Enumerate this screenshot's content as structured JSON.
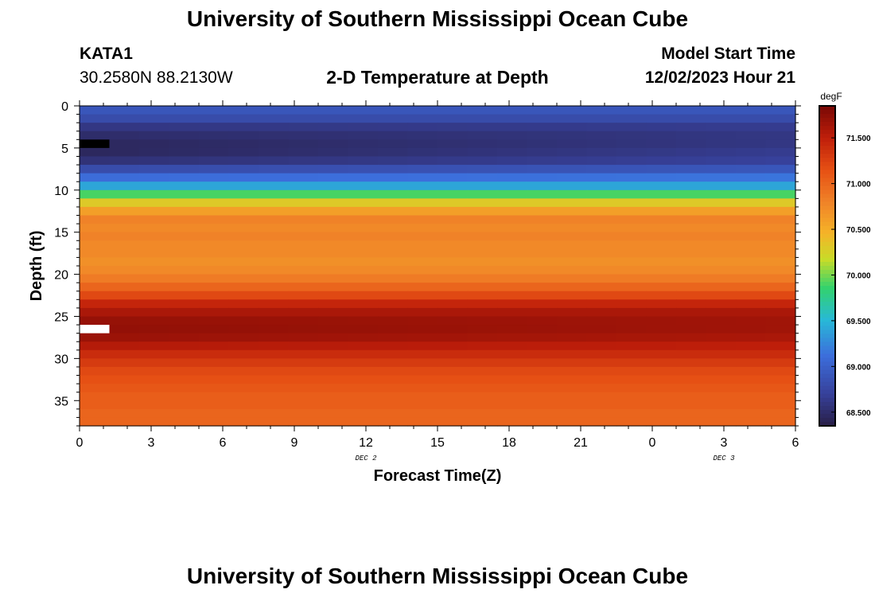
{
  "page_title": "University of Southern Mississippi Ocean Cube",
  "station_id": "KATA1",
  "station_coords": "30.2580N  88.2130W",
  "plot_title": "2-D Temperature at Depth",
  "model_start_label": "Model Start Time",
  "model_start_value": "12/02/2023 Hour 21",
  "footer_title": "University of Southern Mississippi Ocean Cube",
  "chart_data": {
    "type": "heatmap",
    "title": "2-D Temperature at Depth",
    "xlabel": "Forecast Time(Z)",
    "ylabel": "Depth (ft)",
    "x_hours_since_start": [
      0,
      3,
      6,
      9,
      12,
      15,
      18,
      21,
      24,
      27,
      30
    ],
    "x_tick_labels": [
      "0",
      "3",
      "6",
      "9",
      "12",
      "15",
      "18",
      "21",
      "0",
      "3",
      "6"
    ],
    "x_day_labels": [
      {
        "label": "DEC 2",
        "at_tick": 4
      },
      {
        "label": "DEC 3",
        "at_tick": 9
      }
    ],
    "yticks": [
      0,
      5,
      10,
      15,
      20,
      25,
      30,
      35
    ],
    "ylim": [
      38,
      0
    ],
    "colorbar": {
      "unit": "degF",
      "min": 68.35,
      "max": 71.85,
      "ticks": [
        "68.500",
        "69.000",
        "69.500",
        "70.000",
        "70.500",
        "71.000",
        "71.500"
      ],
      "tick_values": [
        68.5,
        69.0,
        69.5,
        70.0,
        70.5,
        71.0,
        71.5
      ]
    },
    "depth_profile": {
      "depths_ft": [
        0,
        1,
        2,
        3,
        4,
        5,
        6,
        7,
        8,
        9,
        10,
        11,
        12,
        13,
        14,
        15,
        16,
        17,
        18,
        19,
        20,
        21,
        22,
        23,
        24,
        25,
        26,
        27,
        28,
        29,
        30,
        31,
        32,
        33,
        34,
        35,
        36,
        37
      ],
      "temp_start_degF": [
        68.9,
        68.8,
        68.6,
        68.5,
        68.45,
        68.45,
        68.55,
        68.8,
        69.1,
        69.4,
        69.9,
        70.3,
        70.6,
        70.8,
        70.75,
        70.8,
        70.75,
        70.75,
        70.7,
        70.75,
        70.85,
        71.0,
        71.2,
        71.45,
        71.6,
        71.7,
        71.72,
        71.68,
        71.55,
        71.4,
        71.3,
        71.2,
        71.15,
        71.1,
        71.05,
        71.05,
        71.0,
        71.0
      ],
      "temp_end_degF": [
        68.9,
        68.8,
        68.65,
        68.6,
        68.6,
        68.65,
        68.7,
        68.9,
        69.15,
        69.4,
        69.9,
        70.3,
        70.6,
        70.8,
        70.75,
        70.8,
        70.75,
        70.75,
        70.7,
        70.75,
        70.85,
        71.0,
        71.2,
        71.45,
        71.6,
        71.65,
        71.65,
        71.6,
        71.5,
        71.4,
        71.3,
        71.2,
        71.15,
        71.1,
        71.05,
        71.05,
        71.0,
        71.0
      ]
    },
    "markers": [
      {
        "color": "#000000",
        "depth_ft": 4,
        "hours": [
          0,
          1.25
        ]
      },
      {
        "color": "#ffffff",
        "depth_ft": 26,
        "hours": [
          0,
          1.25
        ]
      }
    ]
  }
}
